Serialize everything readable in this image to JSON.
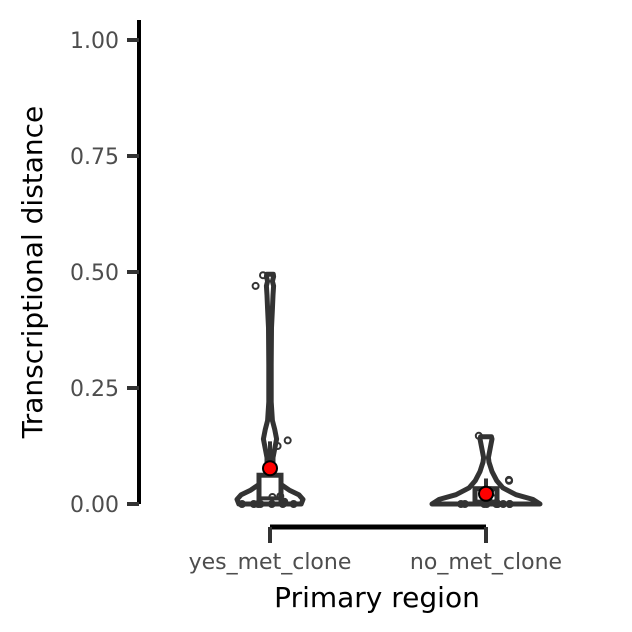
{
  "chart_data": {
    "type": "violin",
    "xlabel": "Primary region",
    "ylabel": "Transcriptional distance",
    "categories": [
      "yes_met_clone",
      "no_met_clone"
    ],
    "ylim": [
      0,
      1.0
    ],
    "yticks": [
      0.0,
      0.25,
      0.5,
      0.75,
      1.0
    ],
    "ytick_labels": [
      "0.00",
      "0.25",
      "0.50",
      "0.75",
      "1.00"
    ],
    "grid": false,
    "legend": "none",
    "groups": [
      {
        "category": "yes_met_clone",
        "mean": 0.077,
        "box": {
          "q1": 0.0,
          "median": 0.012,
          "q3": 0.062,
          "whisker_low": 0.0,
          "whisker_high": 0.135
        },
        "points": [
          0.0,
          0.0,
          0.0,
          0.0,
          0.0,
          0.0,
          0.0,
          0.002,
          0.005,
          0.015,
          0.017,
          0.125,
          0.137,
          0.47,
          0.493
        ],
        "density": [
          [
            0.0,
            0.52
          ],
          [
            0.01,
            0.55
          ],
          [
            0.02,
            0.48
          ],
          [
            0.03,
            0.32
          ],
          [
            0.045,
            0.15
          ],
          [
            0.06,
            0.08
          ],
          [
            0.08,
            0.05
          ],
          [
            0.1,
            0.05
          ],
          [
            0.12,
            0.08
          ],
          [
            0.14,
            0.11
          ],
          [
            0.16,
            0.08
          ],
          [
            0.18,
            0.04
          ],
          [
            0.22,
            0.02
          ],
          [
            0.3,
            0.02
          ],
          [
            0.38,
            0.025
          ],
          [
            0.42,
            0.04
          ],
          [
            0.45,
            0.05
          ],
          [
            0.47,
            0.06
          ],
          [
            0.48,
            0.04
          ],
          [
            0.49,
            0.06
          ],
          [
            0.495,
            0.055
          ]
        ]
      },
      {
        "category": "no_met_clone",
        "mean": 0.022,
        "box": {
          "q1": 0.0,
          "median": 0.005,
          "q3": 0.033,
          "whisker_low": 0.0,
          "whisker_high": 0.055
        },
        "points": [
          0.0,
          0.0,
          0.0,
          0.0,
          0.0,
          0.0,
          0.0,
          0.0,
          0.0,
          0.0,
          0.003,
          0.012,
          0.03,
          0.05,
          0.052,
          0.147
        ],
        "density": [
          [
            0.0,
            0.9
          ],
          [
            0.01,
            0.78
          ],
          [
            0.02,
            0.5
          ],
          [
            0.035,
            0.28
          ],
          [
            0.05,
            0.18
          ],
          [
            0.07,
            0.1
          ],
          [
            0.09,
            0.05
          ],
          [
            0.1,
            0.04
          ],
          [
            0.12,
            0.07
          ],
          [
            0.14,
            0.1
          ],
          [
            0.145,
            0.09
          ]
        ]
      }
    ]
  }
}
